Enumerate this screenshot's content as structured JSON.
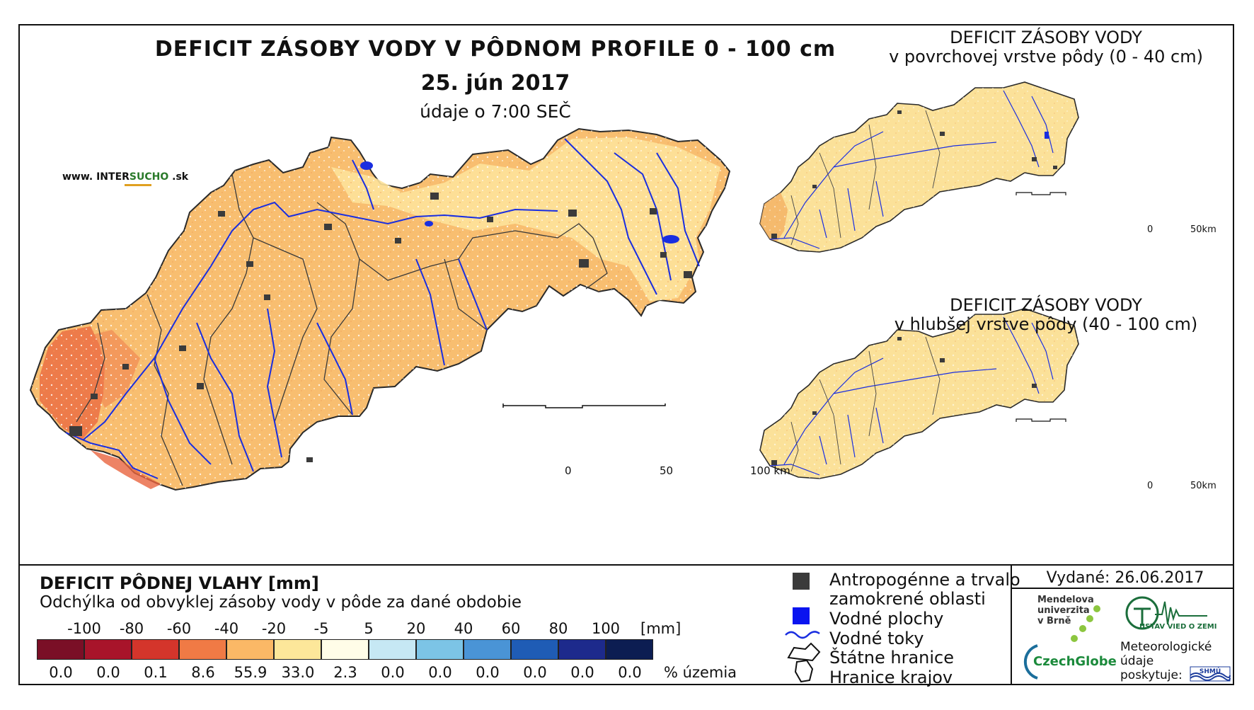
{
  "title": "DEFICIT ZÁSOBY VODY V PÔDNOM PROFILE 0 - 100 cm",
  "date": "25. jún 2017",
  "data_time": "údaje o 7:00 SEČ",
  "brand": {
    "prefix": "www. INTER",
    "highlight": "SUCHO",
    "suffix": " .sk"
  },
  "inset_top": {
    "line1": "DEFICIT ZÁSOBY VODY",
    "line2": "v povrchovej vrstve pôdy (0 - 40 cm)"
  },
  "inset_bottom": {
    "line1": "DEFICIT ZÁSOBY VODY",
    "line2": "v hlubšej vrstve pôdy (40 - 100 cm)"
  },
  "scale_main": {
    "labels": [
      "0",
      "50",
      "100 km"
    ]
  },
  "scale_inset": {
    "labels": [
      "0",
      "50km"
    ]
  },
  "legend": {
    "title": "DEFICIT PÔDNEJ VLAHY [mm]",
    "subtitle": "Odchýlka od obvyklej zásoby vody v pôde za dané obdobie",
    "ticks": [
      "-100",
      "-80",
      "-60",
      "-40",
      "-20",
      "-5",
      "5",
      "20",
      "40",
      "60",
      "80",
      "100"
    ],
    "unit": "[mm]",
    "colors": [
      "#7a0f26",
      "#a8142a",
      "#d4352b",
      "#f07a45",
      "#fbb866",
      "#fde79a",
      "#fffde8",
      "#c6e8f4",
      "#7cc4e6",
      "#4a94d6",
      "#1f5cb5",
      "#1d2a8c",
      "#0c1d52"
    ],
    "percentages": [
      "0.0",
      "0.0",
      "0.1",
      "8.6",
      "55.9",
      "33.0",
      "2.3",
      "0.0",
      "0.0",
      "0.0",
      "0.0",
      "0.0",
      "0.0"
    ],
    "pct_label": "% územia"
  },
  "symbols": {
    "urban": "Antropogénne a trvalo",
    "urban2": "zamokrené oblasti",
    "water_bodies": "Vodné plochy",
    "rivers": "Vodné toky",
    "state_border": "Štátne hranice",
    "region_border": "Hranice krajov"
  },
  "issued": "Vydané: 26.06.2017",
  "logos": {
    "mendel": [
      "Mendelova",
      "univerzita",
      "v Brně"
    ],
    "czechglobe": "CzechGlobe",
    "uvz": "ÚSTAV VIED O ZEMI",
    "meteo": [
      "Meteorologické",
      "údaje",
      "poskytuje:"
    ],
    "shmu": "SHMÚ"
  },
  "map_colors": {
    "fill_main": "#f8be70",
    "fill_inset": "#fbe199",
    "hot": "#e9643e",
    "river": "#1a2ee0",
    "urban": "#3b3b3b",
    "border": "#2a2a2a"
  }
}
